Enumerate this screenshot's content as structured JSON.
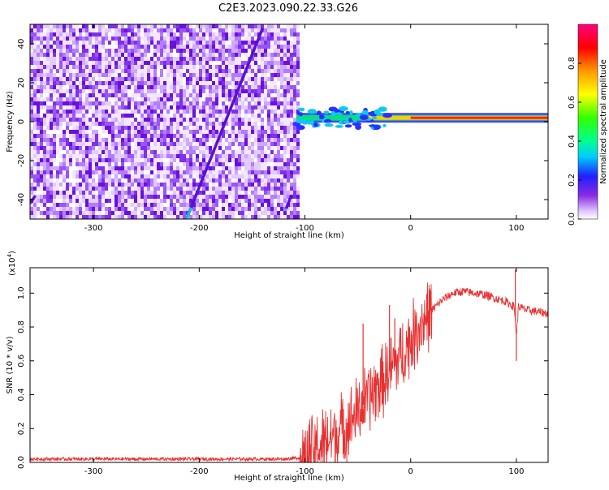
{
  "title": "C2E3.2023.090.22.33.G26",
  "chart_data": [
    {
      "type": "heatmap",
      "name": "spectrogram",
      "xlabel": "Height of straight line (km)",
      "ylabel": "Frequency (Hz)",
      "xlim": [
        -360,
        130
      ],
      "ylim": [
        -50,
        50
      ],
      "xticks": [
        -300,
        -200,
        -100,
        0,
        100
      ],
      "yticks": [
        -40,
        -20,
        0,
        20,
        40
      ],
      "colorbar": {
        "label": "Normalized spectral amplitude",
        "range": [
          0,
          1
        ],
        "ticks": [
          0.0,
          0.2,
          0.4,
          0.6,
          0.8
        ]
      },
      "noise_region_x": [
        -360,
        -108
      ],
      "tone": {
        "frequency_hz": 2,
        "x_start": -108,
        "x_end": 130,
        "peak_amplitude": 0.85
      },
      "drift_lines": [
        {
          "x0": -212,
          "y0": -50,
          "x1": -140,
          "y1": 48
        },
        {
          "x0": -360,
          "y0": -42,
          "x1": -355,
          "y1": -38
        },
        {
          "x0": -118,
          "y0": -45,
          "x1": -113,
          "y1": -38
        }
      ]
    },
    {
      "type": "line",
      "name": "snr",
      "xlabel": "Height of straight line (km)",
      "ylabel": "SNR (10 * v/v)",
      "multiplier_label": "(x10",
      "multiplier_exp": "4",
      "xlim": [
        -360,
        130
      ],
      "ylim": [
        0,
        1.15
      ],
      "xticks": [
        -300,
        -200,
        -100,
        0,
        100
      ],
      "yticks": [
        0.0,
        0.2,
        0.4,
        0.6,
        0.8,
        1.0
      ],
      "color": "#e83030",
      "points": [
        [
          -360,
          0.02
        ],
        [
          -300,
          0.02
        ],
        [
          -200,
          0.02
        ],
        [
          -120,
          0.02
        ],
        [
          -100,
          0.03
        ],
        [
          -90,
          0.08
        ],
        [
          -80,
          0.12
        ],
        [
          -70,
          0.17
        ],
        [
          -60,
          0.22
        ],
        [
          -50,
          0.3
        ],
        [
          -40,
          0.38
        ],
        [
          -30,
          0.45
        ],
        [
          -20,
          0.54
        ],
        [
          -10,
          0.62
        ],
        [
          0,
          0.72
        ],
        [
          10,
          0.82
        ],
        [
          20,
          0.9
        ],
        [
          30,
          0.96
        ],
        [
          40,
          1.0
        ],
        [
          50,
          1.01
        ],
        [
          60,
          1.0
        ],
        [
          70,
          0.99
        ],
        [
          80,
          0.97
        ],
        [
          90,
          0.95
        ],
        [
          98,
          0.92
        ],
        [
          100,
          0.75
        ],
        [
          102,
          0.92
        ],
        [
          110,
          0.9
        ],
        [
          120,
          0.89
        ],
        [
          130,
          0.88
        ]
      ],
      "spikes": [
        {
          "x": -45,
          "y": 0.82
        },
        {
          "x": -20,
          "y": 0.93
        },
        {
          "x": -15,
          "y": 0.85
        },
        {
          "x": 99,
          "y": 1.14
        },
        {
          "x": 100,
          "y": 0.6
        }
      ]
    }
  ]
}
